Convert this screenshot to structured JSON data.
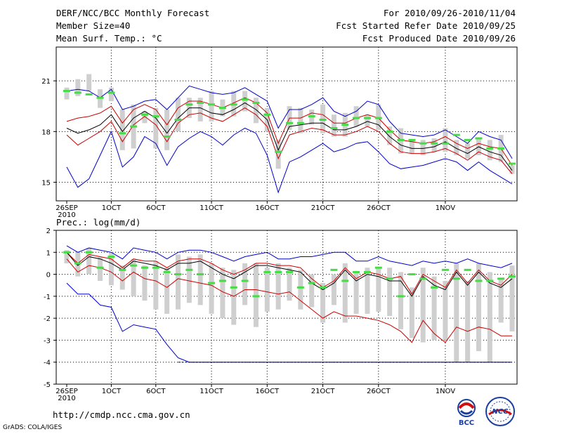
{
  "header": {
    "title": "DERF/NCC/BCC Monthly Forecast",
    "member_size": "Member Size=40",
    "panel1_label": "Mean Surf. Temp.: °C",
    "period": "For 2010/09/26-2010/11/04",
    "started": "Fcst Started Refer Date 2010/09/25",
    "produced": "Fcst Produced Date 2010/09/26"
  },
  "panel2_label": "Prec.: log(mm/d)",
  "footer": {
    "url": "http://cmdp.ncc.cma.gov.cn",
    "credit": "GrADS: COLA/IGES"
  },
  "logos": {
    "bcc": "BCC",
    "ncc": "NCC"
  },
  "colors": {
    "max_min": "#0000cc",
    "quartile": "#cc0000",
    "median": "#000000",
    "bar": "#cfcfcf",
    "mean": "#44dd44"
  },
  "chart_data": [
    {
      "type": "box-ensemble",
      "ylabel": "Mean Surf. Temp.: °C",
      "ylim": [
        13.9,
        23.0
      ],
      "yticks": [
        15,
        18,
        21
      ],
      "xticks": [
        {
          "day": 0,
          "label": "26SEP",
          "sub": "2010"
        },
        {
          "day": 4,
          "label": "1OCT"
        },
        {
          "day": 8,
          "label": "6OCT"
        },
        {
          "day": 13,
          "label": "11OCT"
        },
        {
          "day": 18,
          "label": "16OCT"
        },
        {
          "day": 23,
          "label": "21OCT"
        },
        {
          "day": 28,
          "label": "26OCT"
        },
        {
          "day": 34,
          "label": "1NOV"
        }
      ],
      "max": [
        20.4,
        20.5,
        20.4,
        20.0,
        20.5,
        19.3,
        19.5,
        19.8,
        19.9,
        19.3,
        20.0,
        20.7,
        20.5,
        20.3,
        20.2,
        20.3,
        20.6,
        20.2,
        19.8,
        18.2,
        19.3,
        19.3,
        19.6,
        20.0,
        19.2,
        18.9,
        19.2,
        19.8,
        19.6,
        18.6,
        17.9,
        17.8,
        17.7,
        17.8,
        18.1,
        17.7,
        17.3,
        18.0,
        17.7,
        17.5,
        16.4
      ],
      "q3": [
        18.6,
        18.8,
        18.9,
        19.1,
        19.5,
        18.5,
        19.3,
        19.6,
        19.3,
        18.4,
        19.4,
        19.8,
        19.8,
        19.6,
        19.4,
        19.7,
        20.0,
        19.7,
        19.1,
        17.3,
        18.8,
        18.8,
        19.1,
        19.0,
        18.5,
        18.5,
        18.8,
        19.0,
        18.8,
        18.1,
        17.5,
        17.4,
        17.3,
        17.4,
        17.7,
        17.3,
        17.0,
        17.3,
        17.1,
        17.0,
        16.0
      ],
      "median": [
        18.2,
        17.9,
        18.1,
        18.4,
        19.0,
        18.0,
        18.8,
        19.2,
        18.8,
        17.9,
        18.8,
        19.4,
        19.4,
        19.1,
        19.0,
        19.3,
        19.7,
        19.3,
        18.7,
        16.9,
        18.3,
        18.4,
        18.5,
        18.5,
        18.1,
        18.1,
        18.3,
        18.6,
        18.4,
        17.7,
        17.2,
        17.0,
        17.0,
        17.1,
        17.4,
        17.0,
        16.7,
        17.1,
        16.8,
        16.6,
        15.7
      ],
      "q1": [
        17.8,
        17.2,
        17.6,
        18.0,
        18.6,
        17.4,
        18.4,
        18.9,
        18.4,
        17.4,
        18.5,
        19.0,
        19.1,
        18.8,
        18.6,
        19.0,
        19.4,
        19.0,
        18.3,
        16.4,
        17.8,
        18.0,
        18.2,
        18.1,
        17.8,
        17.8,
        18.0,
        18.3,
        18.0,
        17.3,
        16.8,
        16.7,
        16.7,
        16.8,
        17.0,
        16.7,
        16.3,
        16.8,
        16.5,
        16.3,
        15.5
      ],
      "min": [
        15.9,
        14.7,
        15.2,
        16.6,
        18.0,
        15.9,
        16.5,
        17.7,
        17.3,
        16.0,
        17.1,
        17.6,
        18.0,
        17.7,
        17.2,
        17.8,
        18.2,
        17.9,
        16.6,
        14.4,
        16.2,
        16.5,
        16.9,
        17.3,
        16.8,
        17.0,
        17.3,
        17.4,
        16.8,
        16.1,
        15.8,
        15.9,
        16.0,
        16.2,
        16.4,
        16.2,
        15.7,
        16.2,
        15.7,
        15.3,
        14.9
      ],
      "bar_top": [
        20.6,
        21.1,
        21.4,
        20.5,
        20.6,
        19.3,
        19.6,
        19.2,
        19.4,
        19.3,
        20.0,
        20.0,
        20.0,
        20.4,
        19.9,
        20.4,
        20.4,
        20.0,
        19.4,
        17.5,
        19.5,
        19.4,
        19.3,
        19.6,
        19.0,
        19.1,
        19.5,
        19.0,
        19.6,
        18.3,
        18.2,
        17.5,
        17.5,
        17.6,
        18.2,
        17.5,
        17.3,
        17.6,
        17.5,
        17.8,
        16.0
      ],
      "bar_bottom": [
        19.9,
        20.1,
        20.4,
        19.4,
        19.8,
        16.9,
        17.0,
        18.5,
        17.0,
        16.9,
        18.0,
        18.8,
        18.6,
        18.6,
        18.9,
        18.9,
        19.2,
        18.5,
        18.0,
        15.8,
        18.1,
        17.9,
        18.4,
        17.9,
        17.7,
        17.7,
        18.3,
        18.3,
        18.1,
        17.2,
        16.7,
        16.7,
        16.6,
        16.8,
        16.8,
        16.6,
        16.4,
        16.6,
        16.3,
        16.2,
        15.5
      ],
      "mean": [
        20.4,
        20.3,
        20.2,
        20.0,
        20.3,
        17.9,
        18.3,
        19.0,
        18.9,
        17.7,
        18.7,
        19.6,
        19.7,
        19.6,
        19.4,
        19.6,
        19.9,
        19.7,
        19.0,
        16.8,
        18.5,
        18.5,
        18.9,
        18.7,
        18.2,
        18.4,
        18.8,
        18.8,
        18.8,
        18.0,
        17.5,
        17.5,
        17.3,
        17.3,
        17.3,
        17.8,
        17.5,
        17.6,
        17.0,
        17.0,
        16.1
      ]
    },
    {
      "type": "box-ensemble",
      "ylabel": "Prec.: log(mm/d)",
      "ylim": [
        -5,
        2
      ],
      "yticks": [
        -5,
        -4,
        -3,
        -2,
        -1,
        0,
        1,
        2
      ],
      "xticks": [
        {
          "day": 0,
          "label": "26SEP",
          "sub": "2010"
        },
        {
          "day": 4,
          "label": "1OCT"
        },
        {
          "day": 8,
          "label": "6OCT"
        },
        {
          "day": 13,
          "label": "11OCT"
        },
        {
          "day": 18,
          "label": "16OCT"
        },
        {
          "day": 23,
          "label": "21OCT"
        },
        {
          "day": 28,
          "label": "26OCT"
        },
        {
          "day": 34,
          "label": "1NOV"
        }
      ],
      "max": [
        1.3,
        1.0,
        1.2,
        1.1,
        1.0,
        0.7,
        1.2,
        1.1,
        1.0,
        0.7,
        1.0,
        1.1,
        1.1,
        1.0,
        0.8,
        0.6,
        0.8,
        0.9,
        1.0,
        0.7,
        0.7,
        0.8,
        0.8,
        0.9,
        1.0,
        1.0,
        0.6,
        0.6,
        0.8,
        0.6,
        0.5,
        0.4,
        0.6,
        0.5,
        0.6,
        0.5,
        0.7,
        0.5,
        0.4,
        0.3,
        0.5
      ],
      "q3": [
        1.0,
        0.5,
        0.9,
        0.8,
        0.7,
        0.3,
        0.7,
        0.6,
        0.6,
        0.3,
        0.6,
        0.7,
        0.7,
        0.5,
        0.2,
        0.0,
        0.2,
        0.5,
        0.5,
        0.4,
        0.4,
        0.3,
        -0.2,
        -0.6,
        -0.3,
        0.3,
        -0.2,
        0.1,
        0.0,
        -0.2,
        -0.1,
        -0.9,
        0.0,
        -0.3,
        -0.6,
        0.2,
        -0.4,
        0.2,
        -0.3,
        -0.5,
        0.0
      ],
      "median": [
        1.0,
        0.4,
        0.8,
        0.7,
        0.5,
        0.2,
        0.6,
        0.5,
        0.4,
        0.2,
        0.5,
        0.5,
        0.6,
        0.3,
        0.0,
        -0.2,
        0.1,
        0.4,
        0.4,
        0.3,
        0.2,
        0.1,
        -0.4,
        -0.7,
        -0.4,
        0.2,
        -0.3,
        0.0,
        -0.1,
        -0.3,
        -0.3,
        -1.0,
        -0.1,
        -0.5,
        -0.7,
        0.1,
        -0.5,
        0.1,
        -0.4,
        -0.6,
        -0.2
      ],
      "q1": [
        0.7,
        0.1,
        0.4,
        0.3,
        0.1,
        -0.3,
        0.1,
        -0.2,
        -0.3,
        -0.6,
        -0.2,
        -0.3,
        -0.4,
        -0.5,
        -0.8,
        -1.0,
        -0.7,
        -0.7,
        -0.8,
        -0.9,
        -0.8,
        -1.2,
        -1.6,
        -2.0,
        -1.7,
        -1.9,
        -1.9,
        -2.0,
        -2.1,
        -2.3,
        -2.6,
        -3.1,
        -2.1,
        -2.7,
        -3.1,
        -2.4,
        -2.6,
        -2.4,
        -2.5,
        -2.8,
        -2.8
      ],
      "min": [
        -0.4,
        -0.9,
        -0.9,
        -1.4,
        -1.5,
        -2.6,
        -2.3,
        -2.4,
        -2.5,
        -3.2,
        -3.8,
        -4.0,
        -4.0,
        -4.0,
        -4.0,
        -4.0,
        -4.0,
        -4.0,
        -4.0,
        -4.0,
        -4.0,
        -4.0,
        -4.0,
        -4.0,
        -4.0,
        -4.0,
        -4.0,
        -4.0,
        -4.0,
        -4.0,
        -4.0,
        -4.0,
        -4.0,
        -4.0,
        -4.0,
        -4.0,
        -4.0,
        -4.0,
        -4.0,
        -4.0,
        -4.0
      ],
      "bar_top": [
        1.1,
        1.0,
        1.2,
        0.8,
        1.0,
        0.4,
        0.7,
        0.4,
        0.6,
        0.3,
        0.9,
        0.8,
        0.9,
        0.5,
        0.3,
        0.2,
        0.5,
        0.5,
        0.3,
        0.5,
        0.3,
        0.2,
        0.0,
        -0.4,
        0.0,
        0.5,
        0.1,
        0.3,
        0.3,
        0.3,
        0.1,
        -0.6,
        0.3,
        -0.1,
        -0.3,
        0.5,
        -0.3,
        0.5,
        0.1,
        -0.2,
        0.4
      ],
      "bar_bottom": [
        0.5,
        -0.1,
        0.0,
        -0.3,
        -0.5,
        -0.7,
        -1.0,
        -1.2,
        -1.6,
        -1.8,
        -1.6,
        -1.3,
        -1.4,
        -1.8,
        -2.0,
        -2.3,
        -1.4,
        -2.4,
        -1.7,
        -1.6,
        -1.2,
        -1.6,
        -1.5,
        -2.2,
        -1.4,
        -2.2,
        -1.8,
        -1.8,
        -1.7,
        -1.9,
        -2.5,
        -2.9,
        -3.1,
        -3.0,
        -3.0,
        -4.0,
        -4.0,
        -3.5,
        -4.0,
        -2.2,
        -2.6
      ],
      "mean": [
        1.0,
        0.5,
        1.0,
        0.3,
        0.8,
        0.2,
        0.4,
        0.3,
        0.3,
        0.1,
        0.0,
        0.2,
        0.0,
        -0.4,
        -0.3,
        -0.6,
        -0.3,
        -1.0,
        0.1,
        0.1,
        0.1,
        -0.6,
        -0.4,
        -0.6,
        0.2,
        -0.3,
        0.1,
        0.1,
        0.3,
        -0.2,
        -1.0,
        0.0,
        -0.2,
        -0.6,
        0.2,
        -0.2,
        0.2,
        -0.3,
        -0.3,
        -0.2,
        -0.1
      ]
    }
  ]
}
